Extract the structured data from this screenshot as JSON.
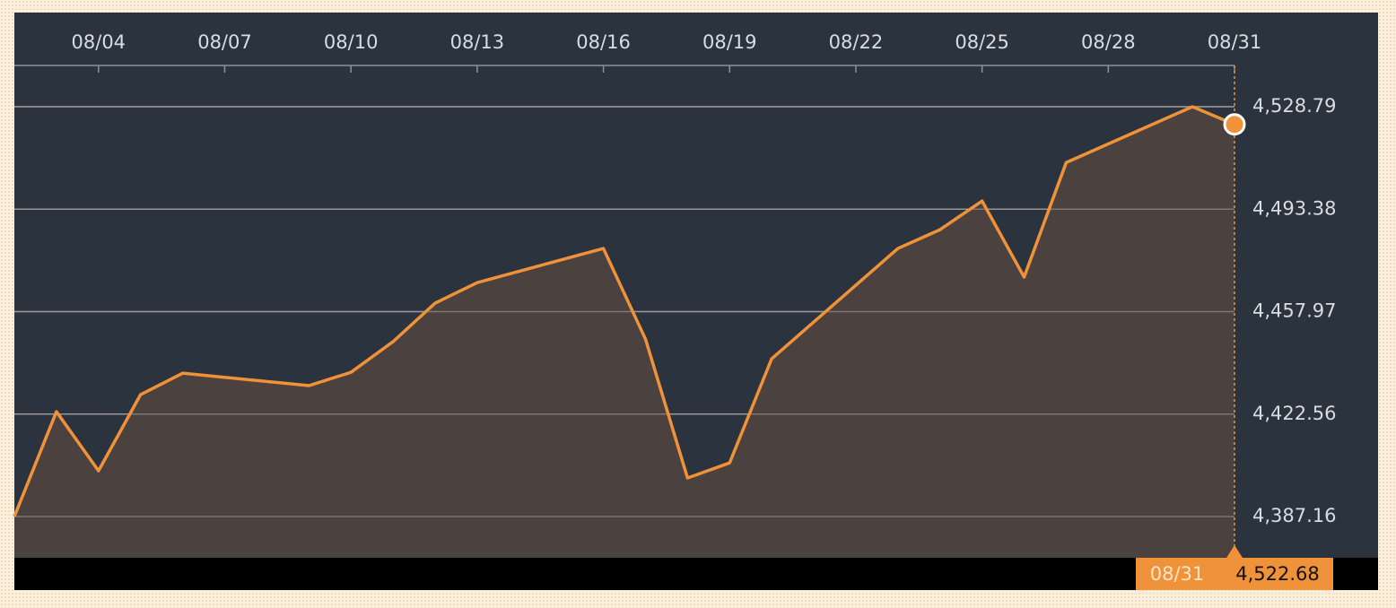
{
  "chart_data": {
    "type": "area",
    "x": [
      "08/02",
      "08/03",
      "08/04",
      "08/05",
      "08/06",
      "08/09",
      "08/10",
      "08/11",
      "08/12",
      "08/13",
      "08/16",
      "08/17",
      "08/18",
      "08/19",
      "08/20",
      "08/23",
      "08/24",
      "08/25",
      "08/26",
      "08/27",
      "08/30",
      "08/31"
    ],
    "values": [
      4387.16,
      4423.4,
      4402.96,
      4429.3,
      4436.7,
      4432.4,
      4437.0,
      4447.6,
      4460.9,
      4468.0,
      4479.8,
      4448.5,
      4400.5,
      4405.7,
      4441.7,
      4479.8,
      4486.3,
      4496.2,
      4469.9,
      4509.5,
      4528.79,
      4522.68
    ],
    "value_labels": [
      null,
      null,
      null,
      null,
      null,
      null,
      null,
      null,
      null,
      null,
      null,
      null,
      null,
      null,
      null,
      null,
      null,
      null,
      null,
      null,
      null,
      "4,522.68"
    ],
    "color": "#f0923a",
    "area_color": "#4b413e",
    "background": "#2b333e",
    "grid": true,
    "xlim": [
      "08/02",
      "08/31"
    ],
    "xticks": [
      "08/04",
      "08/07",
      "08/10",
      "08/13",
      "08/16",
      "08/19",
      "08/22",
      "08/25",
      "08/28",
      "08/31"
    ],
    "ylim": [
      4372.91,
      4543.04
    ],
    "yticks": [
      {
        "value": 4387.16,
        "label": "4,387.16"
      },
      {
        "value": 4422.56,
        "label": "4,422.56"
      },
      {
        "value": 4457.97,
        "label": "4,457.97"
      },
      {
        "value": 4493.38,
        "label": "4,493.38"
      },
      {
        "value": 4528.79,
        "label": "4,528.79"
      }
    ]
  }
}
